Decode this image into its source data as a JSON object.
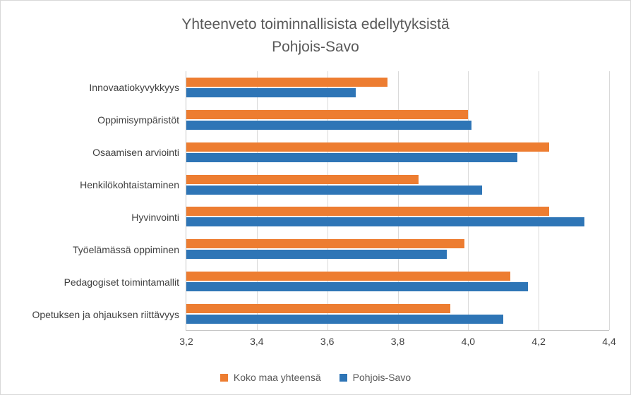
{
  "title": {
    "line1": "Yhteenveto toiminnallisista edellytyksistä",
    "line2": "Pohjois-Savo"
  },
  "chart_data": {
    "type": "bar",
    "orientation": "horizontal",
    "title": "Yhteenveto toiminnallisista edellytyksistä Pohjois-Savo",
    "categories": [
      "Innovaatiokyvykkyys",
      "Oppimisympäristöt",
      "Osaamisen arviointi",
      "Henkilökohtaistaminen",
      "Hyvinvointi",
      "Työelämässä oppiminen",
      "Pedagogiset toimintamallit",
      "Opetuksen ja ohjauksen riittävyys"
    ],
    "series": [
      {
        "name": "Koko maa yhteensä",
        "color": "#ED7D31",
        "values": [
          3.77,
          4.0,
          4.23,
          3.86,
          4.23,
          3.99,
          4.12,
          3.95
        ]
      },
      {
        "name": "Pohjois-Savo",
        "color": "#2E75B6",
        "values": [
          3.68,
          4.01,
          4.14,
          4.04,
          4.33,
          3.94,
          4.17,
          4.1
        ]
      }
    ],
    "xlim": [
      3.2,
      4.4
    ],
    "xticks": [
      3.2,
      3.4,
      3.6,
      3.8,
      4.0,
      4.2,
      4.4
    ],
    "xtick_labels": [
      "3,2",
      "3,4",
      "3,6",
      "3,8",
      "4,0",
      "4,2",
      "4,4"
    ],
    "grid": "vertical",
    "legend_position": "bottom"
  }
}
